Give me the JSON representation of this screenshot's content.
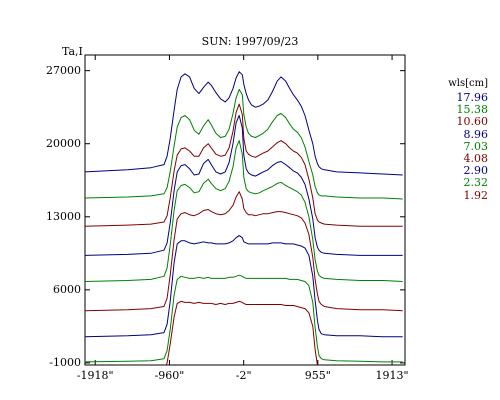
{
  "chart_data": {
    "type": "line",
    "title": "SUN: 1997/09/23",
    "ylabel": "Ta,I",
    "xlabel": "",
    "x_ticks": [
      "-1918\"",
      "-960\"",
      "-2\"",
      "955\"",
      "1913\""
    ],
    "x_tick_values": [
      -1918,
      -960,
      -2,
      955,
      1913
    ],
    "xlim": [
      -2050,
      2080
    ],
    "y_ticks": [
      "27000",
      "20000",
      "13000",
      "6000",
      "-1000"
    ],
    "y_tick_values": [
      27000,
      20000,
      13000,
      6000,
      -1000
    ],
    "ylim": [
      -1200,
      28500
    ],
    "legend_title": "wls[cm]",
    "legend_placement": "right",
    "grid": false,
    "colors": {
      "blue": "#000080",
      "green": "#008000",
      "red": "#800000"
    },
    "series": [
      {
        "name": "17.96",
        "color": "#000080",
        "x": [
          -2050,
          -1500,
          -1200,
          -1030,
          -990,
          -950,
          -900,
          -860,
          -810,
          -760,
          -700,
          -640,
          -580,
          -520,
          -460,
          -420,
          -360,
          -300,
          -240,
          -190,
          -140,
          -100,
          -60,
          -20,
          0,
          30,
          60,
          100,
          150,
          200,
          250,
          310,
          370,
          430,
          480,
          540,
          590,
          640,
          690,
          740,
          790,
          840,
          890,
          920,
          950,
          970,
          1000,
          1040,
          1200,
          1500,
          1800,
          2050
        ],
        "y": [
          17300,
          17500,
          17700,
          18000,
          18800,
          20500,
          23200,
          25200,
          26400,
          26700,
          26400,
          25300,
          24800,
          25400,
          25900,
          25600,
          24900,
          24300,
          24000,
          24400,
          25300,
          26300,
          26900,
          26600,
          25700,
          24800,
          24200,
          23700,
          23500,
          23600,
          23800,
          24200,
          25000,
          26000,
          26400,
          26000,
          25300,
          24700,
          24200,
          23600,
          22700,
          21300,
          20000,
          18800,
          18100,
          17800,
          17600,
          17500,
          17300,
          17200,
          17100,
          17000
        ]
      },
      {
        "name": "15.38",
        "color": "#008000",
        "x": [
          -2050,
          -1500,
          -1200,
          -1030,
          -990,
          -950,
          -900,
          -860,
          -810,
          -760,
          -700,
          -640,
          -580,
          -520,
          -460,
          -420,
          -360,
          -300,
          -240,
          -190,
          -140,
          -100,
          -60,
          -20,
          0,
          30,
          60,
          100,
          150,
          200,
          250,
          310,
          370,
          430,
          480,
          540,
          590,
          640,
          690,
          740,
          790,
          840,
          890,
          920,
          950,
          970,
          1000,
          1040,
          1200,
          1500,
          1800,
          2050
        ],
        "y": [
          14800,
          14900,
          15000,
          15200,
          15800,
          17300,
          19800,
          21600,
          22500,
          22700,
          22300,
          21300,
          20900,
          21700,
          22300,
          21800,
          21000,
          20600,
          20700,
          21400,
          22900,
          24400,
          25200,
          24700,
          22800,
          21600,
          21000,
          20700,
          20600,
          20800,
          21000,
          21400,
          22100,
          22700,
          22900,
          22500,
          21900,
          21400,
          21100,
          20600,
          19700,
          18300,
          17000,
          15900,
          15300,
          15100,
          15000,
          15000,
          14900,
          14800,
          14800,
          14700
        ]
      },
      {
        "name": "10.60",
        "color": "#800000",
        "x": [
          -2050,
          -1500,
          -1200,
          -1030,
          -990,
          -950,
          -900,
          -860,
          -810,
          -760,
          -700,
          -640,
          -580,
          -520,
          -460,
          -420,
          -360,
          -300,
          -240,
          -190,
          -140,
          -100,
          -60,
          -20,
          0,
          30,
          60,
          100,
          150,
          200,
          250,
          310,
          370,
          430,
          480,
          540,
          590,
          640,
          690,
          740,
          790,
          840,
          890,
          920,
          950,
          970,
          1000,
          1040,
          1200,
          1500,
          1800,
          2050
        ],
        "y": [
          12100,
          12200,
          12300,
          12500,
          13100,
          14800,
          17400,
          18900,
          19500,
          19600,
          19300,
          18800,
          18800,
          19600,
          20000,
          19600,
          19000,
          18800,
          18900,
          19600,
          21200,
          23000,
          23800,
          22800,
          20500,
          19300,
          19000,
          18800,
          18700,
          18900,
          19100,
          19300,
          19700,
          20100,
          20300,
          20000,
          19600,
          19300,
          19100,
          18700,
          18000,
          16600,
          14800,
          13300,
          12700,
          12500,
          12400,
          12300,
          12200,
          12100,
          12100,
          12100
        ]
      },
      {
        "name": "8.96",
        "color": "#000080",
        "x": [
          -2050,
          -1500,
          -1200,
          -1030,
          -990,
          -950,
          -900,
          -860,
          -810,
          -760,
          -700,
          -640,
          -580,
          -520,
          -460,
          -420,
          -360,
          -300,
          -240,
          -190,
          -140,
          -100,
          -60,
          -20,
          0,
          30,
          60,
          100,
          150,
          200,
          250,
          310,
          370,
          430,
          480,
          540,
          590,
          640,
          690,
          740,
          790,
          840,
          890,
          920,
          950,
          970,
          1000,
          1040,
          1200,
          1500,
          1800,
          2050
        ],
        "y": [
          9300,
          9400,
          9500,
          9800,
          10500,
          12400,
          15500,
          17300,
          17900,
          18000,
          17600,
          17000,
          17100,
          18100,
          18500,
          18000,
          17300,
          17100,
          17300,
          18200,
          20000,
          22000,
          22700,
          21500,
          18900,
          17600,
          17200,
          17000,
          16900,
          17100,
          17300,
          17500,
          17900,
          18200,
          18300,
          18000,
          17700,
          17400,
          17200,
          16800,
          16100,
          14700,
          12800,
          11000,
          10100,
          9800,
          9600,
          9500,
          9400,
          9300,
          9300,
          9300
        ]
      },
      {
        "name": "7.03",
        "color": "#008000",
        "x": [
          -2050,
          -1500,
          -1200,
          -1030,
          -990,
          -950,
          -900,
          -860,
          -810,
          -760,
          -700,
          -640,
          -580,
          -520,
          -460,
          -420,
          -360,
          -300,
          -240,
          -190,
          -140,
          -100,
          -60,
          -20,
          0,
          30,
          60,
          100,
          150,
          200,
          250,
          310,
          370,
          430,
          480,
          540,
          590,
          640,
          690,
          740,
          790,
          840,
          890,
          920,
          950,
          970,
          1000,
          1040,
          1200,
          1500,
          1800,
          2050
        ],
        "y": [
          6800,
          6900,
          7000,
          7300,
          8100,
          10300,
          13600,
          15500,
          16000,
          16100,
          15800,
          15300,
          15400,
          16200,
          16600,
          16200,
          15700,
          15500,
          15700,
          16400,
          17800,
          19600,
          20300,
          19000,
          16800,
          15700,
          15400,
          15300,
          15200,
          15300,
          15500,
          15700,
          15900,
          16200,
          16300,
          16000,
          15800,
          15600,
          15400,
          15100,
          14400,
          13000,
          10800,
          8900,
          7800,
          7400,
          7200,
          7100,
          7000,
          6900,
          6900,
          6800
        ]
      },
      {
        "name": "4.08",
        "color": "#800000",
        "x": [
          -2050,
          -1500,
          -1200,
          -1030,
          -990,
          -950,
          -900,
          -860,
          -810,
          -760,
          -700,
          -640,
          -580,
          -520,
          -460,
          -420,
          -360,
          -300,
          -240,
          -190,
          -140,
          -100,
          -60,
          -20,
          0,
          30,
          60,
          100,
          150,
          200,
          250,
          310,
          370,
          430,
          480,
          540,
          590,
          640,
          690,
          740,
          790,
          840,
          890,
          920,
          950,
          970,
          1000,
          1040,
          1200,
          1500,
          1800,
          2050
        ],
        "y": [
          4000,
          4100,
          4200,
          4400,
          5200,
          7400,
          10800,
          12800,
          13300,
          13400,
          13200,
          13100,
          13300,
          13600,
          13700,
          13500,
          13300,
          13200,
          13300,
          13600,
          14100,
          14900,
          15400,
          14700,
          13800,
          13400,
          13200,
          13200,
          13100,
          13200,
          13300,
          13300,
          13400,
          13500,
          13500,
          13400,
          13300,
          13200,
          13100,
          12900,
          12400,
          11300,
          9100,
          7000,
          5600,
          4900,
          4600,
          4400,
          4200,
          4100,
          4100,
          4000
        ]
      },
      {
        "name": "2.90",
        "color": "#000080",
        "x": [
          -2050,
          -1500,
          -1200,
          -1030,
          -990,
          -950,
          -900,
          -860,
          -810,
          -760,
          -700,
          -640,
          -580,
          -520,
          -460,
          -420,
          -360,
          -300,
          -240,
          -190,
          -140,
          -100,
          -60,
          -20,
          0,
          30,
          60,
          100,
          150,
          200,
          250,
          310,
          370,
          430,
          480,
          540,
          590,
          640,
          690,
          740,
          790,
          840,
          890,
          920,
          950,
          970,
          1000,
          1040,
          1200,
          1500,
          1800,
          2050
        ],
        "y": [
          1500,
          1600,
          1700,
          1900,
          2700,
          4900,
          8600,
          10400,
          10700,
          10700,
          10500,
          10400,
          10500,
          10600,
          10500,
          10500,
          10400,
          10400,
          10400,
          10500,
          10700,
          11000,
          11200,
          11000,
          10600,
          10500,
          10400,
          10400,
          10400,
          10400,
          10400,
          10400,
          10500,
          10500,
          10500,
          10400,
          10400,
          10400,
          10300,
          10200,
          10000,
          9300,
          7300,
          5000,
          3100,
          2200,
          1800,
          1700,
          1600,
          1600,
          1500,
          1500
        ]
      },
      {
        "name": "2.32",
        "color": "#008000",
        "x": [
          -2050,
          -1500,
          -1200,
          -1030,
          -990,
          -950,
          -900,
          -860,
          -810,
          -760,
          -700,
          -640,
          -580,
          -520,
          -460,
          -420,
          -360,
          -300,
          -240,
          -190,
          -140,
          -100,
          -60,
          -20,
          0,
          30,
          60,
          100,
          150,
          200,
          250,
          310,
          370,
          430,
          480,
          540,
          590,
          640,
          690,
          740,
          790,
          840,
          890,
          920,
          950,
          970,
          1000,
          1040,
          1200,
          1500,
          1800,
          2050
        ],
        "y": [
          -900,
          -850,
          -800,
          -600,
          200,
          2200,
          5500,
          7000,
          7300,
          7200,
          7100,
          7100,
          7200,
          7100,
          7200,
          7100,
          7100,
          7100,
          7100,
          7200,
          7200,
          7300,
          7400,
          7300,
          7200,
          7100,
          7100,
          7100,
          7100,
          7100,
          7100,
          7100,
          7100,
          7100,
          7100,
          7100,
          7000,
          7000,
          7000,
          6900,
          6800,
          6400,
          4800,
          2400,
          600,
          -300,
          -600,
          -700,
          -800,
          -850,
          -900,
          -900
        ]
      },
      {
        "name": "1.92",
        "color": "#800000",
        "x": [
          -2050,
          -1500,
          -1200,
          -1030,
          -990,
          -950,
          -900,
          -860,
          -810,
          -760,
          -700,
          -640,
          -580,
          -520,
          -460,
          -420,
          -360,
          -300,
          -240,
          -190,
          -140,
          -100,
          -60,
          -20,
          0,
          30,
          60,
          100,
          150,
          200,
          250,
          310,
          370,
          430,
          480,
          540,
          590,
          640,
          690,
          740,
          790,
          840,
          890,
          920,
          950,
          970,
          1000,
          1040,
          1200,
          1500,
          1800,
          2050
        ],
        "y": [
          -2000,
          -1950,
          -1900,
          -1700,
          -1000,
          800,
          3400,
          4700,
          4900,
          4800,
          4800,
          4700,
          4800,
          4700,
          4700,
          4700,
          4600,
          4700,
          4600,
          4700,
          4700,
          4800,
          4900,
          4800,
          4700,
          4600,
          4600,
          4600,
          4600,
          4600,
          4600,
          4600,
          4600,
          4600,
          4600,
          4500,
          4500,
          4500,
          4400,
          4300,
          4200,
          3800,
          2500,
          300,
          -1200,
          -1700,
          -1900,
          -1950,
          -2000,
          -2000,
          -2000,
          -2000
        ]
      }
    ]
  }
}
